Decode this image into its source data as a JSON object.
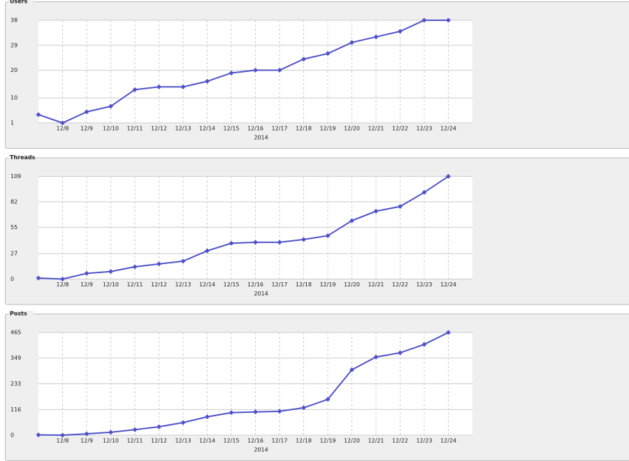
{
  "chart_data": [
    {
      "type": "line",
      "title": "Users",
      "xlabel": "2014",
      "color": "#4f52c9",
      "grid": true,
      "categories": [
        null,
        "12/8",
        "12/9",
        "12/10",
        "12/11",
        "12/12",
        "12/13",
        "12/14",
        "12/15",
        "12/16",
        "12/17",
        "12/18",
        "12/19",
        "12/20",
        "12/21",
        "12/22",
        "12/23",
        "12/24"
      ],
      "values": [
        4,
        1,
        5,
        7,
        13,
        14,
        14,
        16,
        19,
        20,
        20,
        24,
        26,
        30,
        32,
        34,
        38,
        38
      ],
      "ylim": [
        1,
        38
      ],
      "yticks": [
        1,
        10,
        20,
        29,
        38
      ]
    },
    {
      "type": "line",
      "title": "Threads",
      "xlabel": "2014",
      "color": "#4f52c9",
      "grid": true,
      "categories": [
        null,
        "12/8",
        "12/9",
        "12/10",
        "12/11",
        "12/12",
        "12/13",
        "12/14",
        "12/15",
        "12/16",
        "12/17",
        "12/18",
        "12/19",
        "12/20",
        "12/21",
        "12/22",
        "12/23",
        "12/24"
      ],
      "values": [
        1,
        0,
        6,
        8,
        13,
        16,
        19,
        30,
        38,
        39,
        39,
        42,
        46,
        62,
        72,
        77,
        92,
        109
      ],
      "ylim": [
        0,
        109
      ],
      "yticks": [
        0,
        27,
        55,
        82,
        109
      ]
    },
    {
      "type": "line",
      "title": "Posts",
      "xlabel": "2014",
      "color": "#4f52c9",
      "grid": true,
      "categories": [
        null,
        "12/8",
        "12/9",
        "12/10",
        "12/11",
        "12/12",
        "12/13",
        "12/14",
        "12/15",
        "12/16",
        "12/17",
        "12/18",
        "12/19",
        "12/20",
        "12/21",
        "12/22",
        "12/23",
        "12/24"
      ],
      "values": [
        1,
        0,
        6,
        13,
        25,
        38,
        57,
        83,
        102,
        105,
        108,
        124,
        162,
        296,
        354,
        373,
        411,
        465
      ],
      "ylim": [
        0,
        465
      ],
      "yticks": [
        0,
        116,
        233,
        349,
        465
      ]
    }
  ]
}
